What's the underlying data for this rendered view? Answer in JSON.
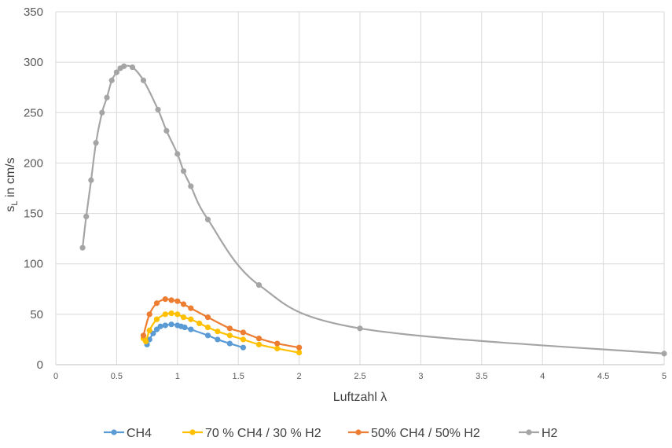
{
  "chart_data": {
    "type": "scatter",
    "xlabel": "Luftzahl λ",
    "ylabel": {
      "main": "s",
      "sub": "L",
      "rest": " in cm/s"
    },
    "xlim": [
      0,
      5
    ],
    "ylim": [
      0,
      350
    ],
    "x_ticks": [
      "0",
      "0.5",
      "1",
      "1.5",
      "2",
      "2.5",
      "3",
      "3.5",
      "4",
      "4.5",
      "5"
    ],
    "y_ticks": [
      "0",
      "50",
      "100",
      "150",
      "200",
      "250",
      "300",
      "350"
    ],
    "grid": true,
    "legend_position": "bottom",
    "series": [
      {
        "name": "CH4",
        "color": "#5B9BD5",
        "points": [
          [
            0.75,
            20
          ],
          [
            0.77,
            25
          ],
          [
            0.8,
            31
          ],
          [
            0.83,
            35
          ],
          [
            0.86,
            38
          ],
          [
            0.9,
            39
          ],
          [
            0.95,
            40
          ],
          [
            1.0,
            39
          ],
          [
            1.03,
            38
          ],
          [
            1.06,
            37
          ],
          [
            1.11,
            35
          ],
          [
            1.25,
            29
          ],
          [
            1.33,
            25
          ],
          [
            1.43,
            21
          ],
          [
            1.54,
            17
          ]
        ]
      },
      {
        "name": "70 % CH4 / 30 % H2",
        "color": "#FFC000",
        "points": [
          [
            0.72,
            26
          ],
          [
            0.74,
            23
          ],
          [
            0.77,
            34
          ],
          [
            0.83,
            45
          ],
          [
            0.9,
            50
          ],
          [
            0.95,
            51
          ],
          [
            1.0,
            50
          ],
          [
            1.05,
            47
          ],
          [
            1.11,
            45
          ],
          [
            1.18,
            41
          ],
          [
            1.25,
            37
          ],
          [
            1.33,
            33
          ],
          [
            1.43,
            29
          ],
          [
            1.54,
            25
          ],
          [
            1.67,
            20
          ],
          [
            1.82,
            16
          ],
          [
            2.0,
            12
          ]
        ]
      },
      {
        "name": "50% CH4 / 50% H2",
        "color": "#ED7D31",
        "points": [
          [
            0.72,
            29
          ],
          [
            0.77,
            50
          ],
          [
            0.83,
            61
          ],
          [
            0.9,
            65
          ],
          [
            0.95,
            64
          ],
          [
            1.0,
            63
          ],
          [
            1.05,
            60
          ],
          [
            1.11,
            56
          ],
          [
            1.25,
            47
          ],
          [
            1.43,
            36
          ],
          [
            1.54,
            32
          ],
          [
            1.67,
            26
          ],
          [
            1.82,
            21
          ],
          [
            2.0,
            17
          ]
        ]
      },
      {
        "name": "H2",
        "color": "#A5A5A5",
        "points": [
          [
            0.22,
            116
          ],
          [
            0.25,
            147
          ],
          [
            0.29,
            183
          ],
          [
            0.33,
            220
          ],
          [
            0.38,
            250
          ],
          [
            0.42,
            265
          ],
          [
            0.46,
            282
          ],
          [
            0.5,
            290
          ],
          [
            0.53,
            294
          ],
          [
            0.56,
            296
          ],
          [
            0.63,
            295
          ],
          [
            0.72,
            282
          ],
          [
            0.84,
            253
          ],
          [
            0.91,
            232
          ],
          [
            1.0,
            209
          ],
          [
            1.05,
            192
          ],
          [
            1.11,
            177
          ],
          [
            1.25,
            144
          ],
          [
            1.67,
            79
          ],
          [
            2.5,
            36
          ],
          [
            5.0,
            11
          ]
        ]
      }
    ]
  }
}
